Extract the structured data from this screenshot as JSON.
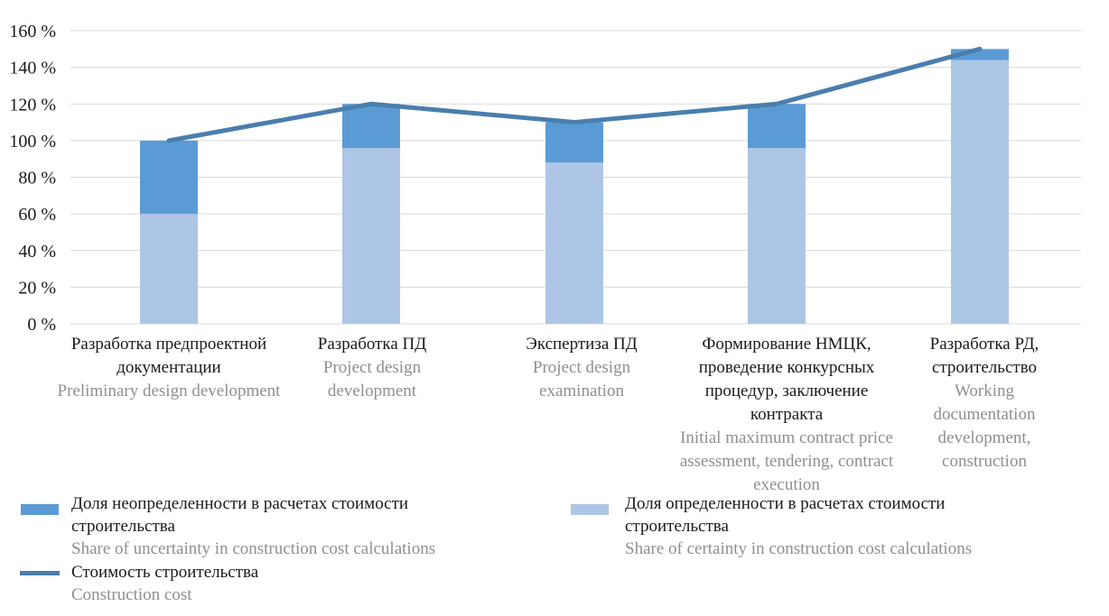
{
  "chart_data": {
    "type": "bar",
    "stacked": true,
    "categories": [
      {
        "ru": "Разработка предпроектной документации",
        "en": "Preliminary design development"
      },
      {
        "ru": "Разработка ПД",
        "en": "Project design development"
      },
      {
        "ru": "Экспертиза ПД",
        "en": "Project design examination"
      },
      {
        "ru": "Формирование НМЦК, проведение конкурсных процедур, заключение контракта",
        "en": "Initial maximum contract price assessment, tendering, contract execution"
      },
      {
        "ru": "Разработка РД, строительство",
        "en": "Working documentation development, construction"
      }
    ],
    "series": [
      {
        "name": "Доля определенности в расчетах стоимости строительства",
        "name_en": "Share of certainty in construction cost calculations",
        "type": "bar",
        "color": "#adc6e6",
        "values": [
          60,
          96,
          88,
          96,
          144
        ]
      },
      {
        "name": "Доля неопределенности в расчетах стоимости строительства",
        "name_en": "Share of uncertainty in construction cost calculations",
        "type": "bar",
        "color": "#5b9bd5",
        "values": [
          40,
          24,
          22,
          24,
          6
        ]
      },
      {
        "name": "Стоимость строительства",
        "name_en": "Construction cost",
        "type": "line",
        "color": "#4a7ead",
        "values": [
          100,
          120,
          110,
          120,
          150
        ]
      }
    ],
    "y_ticks": [
      "0 %",
      "20 %",
      "40 %",
      "60 %",
      "80 %",
      "100 %",
      "120 %",
      "140 %",
      "160 %"
    ],
    "ylim": [
      0,
      160
    ],
    "grid": true,
    "legend_position": "bottom"
  },
  "legend": {
    "uncertainty_ru": "Доля неопределенности в расчетах стоимости строительства",
    "uncertainty_en": "Share of uncertainty in construction cost calculations",
    "certainty_ru": "Доля определенности в расчетах стоимости строительства",
    "certainty_en": "Share of certainty in construction cost calculations",
    "cost_ru": "Стоимость строительства",
    "cost_en": "Construction cost"
  }
}
